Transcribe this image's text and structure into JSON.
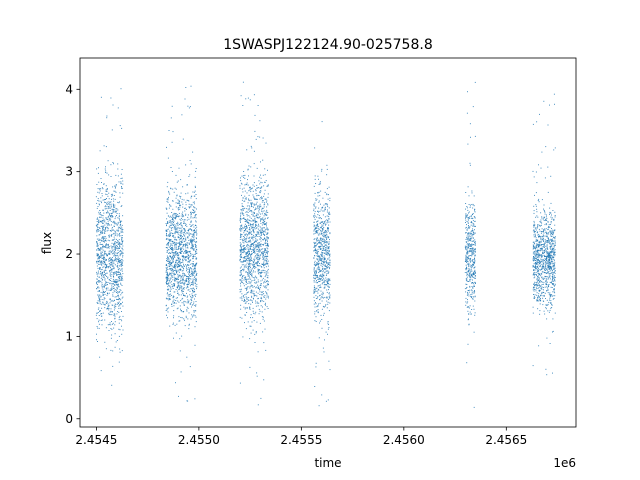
{
  "chart_data": {
    "type": "scatter",
    "title": "1SWASPJ122124.90-025758.8",
    "xlabel": "time",
    "ylabel": "flux",
    "x_offset_label": "1e6",
    "xlim": [
      2454420,
      2456840
    ],
    "ylim": [
      -0.1,
      4.38
    ],
    "x_ticks": [
      2454500,
      2455000,
      2455500,
      2456000,
      2456500
    ],
    "x_tick_labels": [
      "2.4545",
      "2.4550",
      "2.4555",
      "2.4560",
      "2.4565"
    ],
    "y_ticks": [
      0,
      1,
      2,
      3,
      4
    ],
    "y_tick_labels": [
      "0",
      "1",
      "2",
      "3",
      "4"
    ],
    "grid": false,
    "marker_color": "#1f77b4",
    "clusters": [
      {
        "x_start": 2454500,
        "x_end": 2454630,
        "center": 2.0,
        "spread": 0.45,
        "min": 0.35,
        "max": 4.15
      },
      {
        "x_start": 2454840,
        "x_end": 2454990,
        "center": 2.0,
        "spread": 0.38,
        "min": 0.15,
        "max": 4.05
      },
      {
        "x_start": 2455200,
        "x_end": 2455340,
        "center": 2.1,
        "spread": 0.42,
        "min": 0.05,
        "max": 4.15
      },
      {
        "x_start": 2455560,
        "x_end": 2455640,
        "center": 2.0,
        "spread": 0.38,
        "min": 0.15,
        "max": 3.65
      },
      {
        "x_start": 2456300,
        "x_end": 2456350,
        "center": 2.0,
        "spread": 0.36,
        "min": 0.05,
        "max": 4.15
      },
      {
        "x_start": 2456630,
        "x_end": 2456740,
        "center": 1.95,
        "spread": 0.28,
        "min": 0.4,
        "max": 3.95
      }
    ]
  }
}
